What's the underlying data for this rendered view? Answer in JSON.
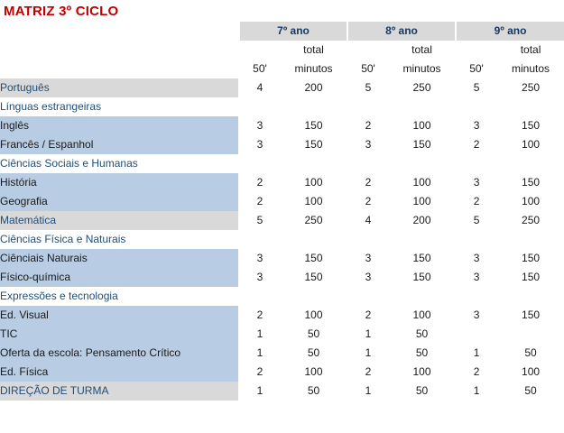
{
  "title": "MATRIZ 3º CICLO",
  "years": [
    "7º ano",
    "8º ano",
    "9º ano"
  ],
  "col_headers": {
    "periods": "50'",
    "total_line1": "total",
    "total_line2": "minutos"
  },
  "rows": [
    {
      "type": "subject",
      "label": "Português",
      "y7": [
        "4",
        "200"
      ],
      "y8": [
        "5",
        "250"
      ],
      "y9": [
        "5",
        "250"
      ]
    },
    {
      "type": "area",
      "label": "Línguas estrangeiras",
      "y7": [
        "",
        ""
      ],
      "y8": [
        "",
        ""
      ],
      "y9": [
        "",
        ""
      ]
    },
    {
      "type": "child",
      "label": "Inglês",
      "y7": [
        "3",
        "150"
      ],
      "y8": [
        "2",
        "100"
      ],
      "y9": [
        "3",
        "150"
      ]
    },
    {
      "type": "child",
      "label": "Francês / Espanhol",
      "y7": [
        "3",
        "150"
      ],
      "y8": [
        "3",
        "150"
      ],
      "y9": [
        "2",
        "100"
      ]
    },
    {
      "type": "area",
      "label": "Ciências Sociais e Humanas",
      "y7": [
        "",
        ""
      ],
      "y8": [
        "",
        ""
      ],
      "y9": [
        "",
        ""
      ]
    },
    {
      "type": "child",
      "label": "História",
      "y7": [
        "2",
        "100"
      ],
      "y8": [
        "2",
        "100"
      ],
      "y9": [
        "3",
        "150"
      ]
    },
    {
      "type": "child",
      "label": "Geografia",
      "y7": [
        "2",
        "100"
      ],
      "y8": [
        "2",
        "100"
      ],
      "y9": [
        "2",
        "100"
      ]
    },
    {
      "type": "subject",
      "label": "Matemática",
      "y7": [
        "5",
        "250"
      ],
      "y8": [
        "4",
        "200"
      ],
      "y9": [
        "5",
        "250"
      ]
    },
    {
      "type": "area",
      "label": "Ciências Física e Naturais",
      "y7": [
        "",
        ""
      ],
      "y8": [
        "",
        ""
      ],
      "y9": [
        "",
        ""
      ]
    },
    {
      "type": "child",
      "label": "Ciênciais Naturais",
      "y7": [
        "3",
        "150"
      ],
      "y8": [
        "3",
        "150"
      ],
      "y9": [
        "3",
        "150"
      ]
    },
    {
      "type": "child",
      "label": "Físico-química",
      "y7": [
        "3",
        "150"
      ],
      "y8": [
        "3",
        "150"
      ],
      "y9": [
        "3",
        "150"
      ]
    },
    {
      "type": "area",
      "label": "Expressões e tecnologia",
      "y7": [
        "",
        ""
      ],
      "y8": [
        "",
        ""
      ],
      "y9": [
        "",
        ""
      ]
    },
    {
      "type": "child",
      "label": "Ed. Visual",
      "y7": [
        "2",
        "100"
      ],
      "y8": [
        "2",
        "100"
      ],
      "y9": [
        "3",
        "150"
      ]
    },
    {
      "type": "child",
      "label": "TIC",
      "y7": [
        "1",
        "50"
      ],
      "y8": [
        "1",
        "50"
      ],
      "y9": [
        "",
        ""
      ]
    },
    {
      "type": "child",
      "label": "Oferta da escola: Pensamento Crítico",
      "y7": [
        "1",
        "50"
      ],
      "y8": [
        "1",
        "50"
      ],
      "y9": [
        "1",
        "50"
      ]
    },
    {
      "type": "child",
      "label": "Ed. Física",
      "y7": [
        "2",
        "100"
      ],
      "y8": [
        "2",
        "100"
      ],
      "y9": [
        "2",
        "100"
      ]
    },
    {
      "type": "footer",
      "label": "DIREÇÃO DE TURMA",
      "y7": [
        "1",
        "50"
      ],
      "y8": [
        "1",
        "50"
      ],
      "y9": [
        "1",
        "50"
      ]
    }
  ]
}
